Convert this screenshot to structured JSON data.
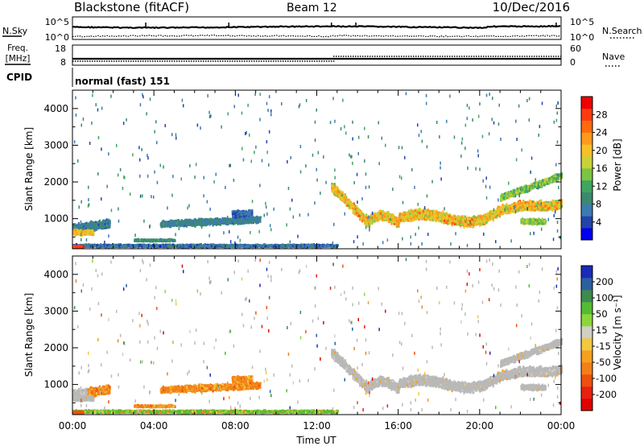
{
  "header": {
    "site": "Blackstone (fitACF)",
    "beam": "Beam 12",
    "date": "10/Dec/2016"
  },
  "aux_panel": {
    "nsky_label": "N.Sky",
    "nsky_ticks": [
      "10^5",
      "10^0"
    ],
    "nsearch_label": "N.Search",
    "nsearch_ticks": [
      "10^5",
      "10^0"
    ],
    "freq_label_1": "Freq.",
    "freq_label_2": "[MHz]",
    "freq_ticks": [
      "18",
      "8"
    ],
    "nave_label": "Nave",
    "nave_ticks": [
      "60",
      "0"
    ],
    "cpid_label": "CPID",
    "cpid_value": "normal (fast) 151",
    "freq_change_time": "12:50"
  },
  "colors": {
    "scatter_ground": "#b9b9b9",
    "plot_background": "#ffffff"
  },
  "chart_data": [
    {
      "type": "heatmap",
      "panel": "power",
      "ylabel": "Slant Range [km]",
      "xlabel": "",
      "x_ticks": [
        "00:00",
        "04:00",
        "08:00",
        "12:00",
        "16:00",
        "20:00",
        "00:00"
      ],
      "y_ticks": [
        "1000",
        "2000",
        "3000",
        "4000"
      ],
      "xlim_hours": [
        0,
        24
      ],
      "ylim_km": [
        180,
        4500
      ],
      "colorbar": {
        "label": "Power [dB]",
        "ticks": [
          "4",
          "8",
          "12",
          "16",
          "20",
          "24",
          "28"
        ],
        "range": [
          0,
          32
        ],
        "colors": [
          "#0000ee",
          "#2244aa",
          "#3d7ab0",
          "#3c8a6e",
          "#40a560",
          "#7cc443",
          "#c8d238",
          "#f5c028",
          "#ff9a1c",
          "#ff6a10",
          "#ff3a10",
          "#ee0000"
        ]
      }
    },
    {
      "type": "heatmap",
      "panel": "velocity",
      "ylabel": "Slant Range [km]",
      "xlabel": "Time UT",
      "x_ticks": [
        "00:00",
        "04:00",
        "08:00",
        "12:00",
        "16:00",
        "20:00",
        "00:00"
      ],
      "y_ticks": [
        "1000",
        "2000",
        "3000",
        "4000"
      ],
      "xlim_hours": [
        0,
        24
      ],
      "ylim_km": [
        180,
        4500
      ],
      "colorbar": {
        "label": "Velocity [m s⁻¹]",
        "ticks": [
          "200",
          "100",
          "50",
          "15",
          "-15",
          "-50",
          "-100",
          "-200"
        ],
        "colors": [
          "#1a2ab8",
          "#2c5fa0",
          "#3f8a4e",
          "#55bb33",
          "#8dd63a",
          "#cfcfc4",
          "#f2c840",
          "#f6a020",
          "#f28018",
          "#ee5010",
          "#e82010",
          "#e00000"
        ]
      }
    }
  ]
}
